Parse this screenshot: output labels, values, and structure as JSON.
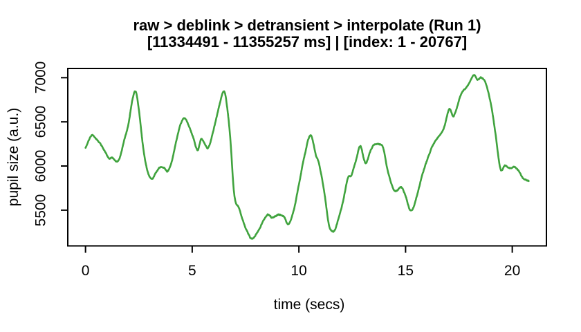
{
  "title": {
    "line1": "raw > deblink > detransient > interpolate (Run 1)",
    "line2": "[11334491 - 11355257 ms] | [index: 1 - 20767]"
  },
  "axes": {
    "x_label": "time (secs)",
    "y_label": "pupil size (a.u.)"
  },
  "colors": {
    "line": "#40a33e",
    "foreground": "#000000",
    "background": "#ffffff"
  },
  "chart_data": {
    "type": "line",
    "title": "raw > deblink > detransient > interpolate (Run 1)",
    "subtitle": "[11334491 - 11355257 ms] | [index: 1 - 20767]",
    "xlabel": "time (secs)",
    "ylabel": "pupil size (a.u.)",
    "x_ticks": [
      0,
      5,
      10,
      15,
      20
    ],
    "y_ticks": [
      5500,
      6000,
      6500,
      7000
    ],
    "xlim": [
      0,
      20.77
    ],
    "ylim": [
      5170,
      7030
    ],
    "axis_expansion": 0.04,
    "grid": "off",
    "legend": "none",
    "line_color": "#40a33e",
    "noise_amplitude": 7,
    "points": [
      [
        0.0,
        6205
      ],
      [
        0.15,
        6290
      ],
      [
        0.3,
        6350
      ],
      [
        0.5,
        6305
      ],
      [
        0.7,
        6250
      ],
      [
        0.9,
        6170
      ],
      [
        1.1,
        6085
      ],
      [
        1.25,
        6095
      ],
      [
        1.45,
        6050
      ],
      [
        1.6,
        6090
      ],
      [
        1.8,
        6280
      ],
      [
        2.0,
        6460
      ],
      [
        2.2,
        6750
      ],
      [
        2.35,
        6845
      ],
      [
        2.5,
        6640
      ],
      [
        2.7,
        6215
      ],
      [
        2.9,
        5945
      ],
      [
        3.1,
        5855
      ],
      [
        3.3,
        5925
      ],
      [
        3.5,
        5985
      ],
      [
        3.7,
        5975
      ],
      [
        3.85,
        5940
      ],
      [
        4.05,
        6060
      ],
      [
        4.25,
        6280
      ],
      [
        4.45,
        6470
      ],
      [
        4.65,
        6540
      ],
      [
        4.85,
        6450
      ],
      [
        5.05,
        6320
      ],
      [
        5.25,
        6180
      ],
      [
        5.42,
        6300
      ],
      [
        5.6,
        6245
      ],
      [
        5.75,
        6205
      ],
      [
        5.95,
        6360
      ],
      [
        6.15,
        6560
      ],
      [
        6.35,
        6760
      ],
      [
        6.5,
        6845
      ],
      [
        6.62,
        6700
      ],
      [
        6.78,
        6330
      ],
      [
        6.97,
        5680
      ],
      [
        7.2,
        5520
      ],
      [
        7.45,
        5330
      ],
      [
        7.62,
        5235
      ],
      [
        7.8,
        5175
      ],
      [
        8.1,
        5270
      ],
      [
        8.35,
        5385
      ],
      [
        8.55,
        5450
      ],
      [
        8.75,
        5415
      ],
      [
        9.05,
        5450
      ],
      [
        9.3,
        5425
      ],
      [
        9.5,
        5340
      ],
      [
        9.75,
        5490
      ],
      [
        10.0,
        5790
      ],
      [
        10.25,
        6100
      ],
      [
        10.55,
        6350
      ],
      [
        10.8,
        6120
      ],
      [
        10.95,
        6020
      ],
      [
        11.2,
        5690
      ],
      [
        11.4,
        5340
      ],
      [
        11.55,
        5262
      ],
      [
        11.7,
        5285
      ],
      [
        11.9,
        5445
      ],
      [
        12.05,
        5580
      ],
      [
        12.3,
        5865
      ],
      [
        12.45,
        5890
      ],
      [
        12.67,
        6060
      ],
      [
        12.88,
        6225
      ],
      [
        13.05,
        6075
      ],
      [
        13.15,
        6030
      ],
      [
        13.36,
        6175
      ],
      [
        13.53,
        6240
      ],
      [
        13.75,
        6245
      ],
      [
        13.95,
        6205
      ],
      [
        14.17,
        5940
      ],
      [
        14.44,
        5733
      ],
      [
        14.6,
        5720
      ],
      [
        14.8,
        5760
      ],
      [
        15.0,
        5660
      ],
      [
        15.2,
        5505
      ],
      [
        15.35,
        5520
      ],
      [
        15.55,
        5680
      ],
      [
        15.75,
        5870
      ],
      [
        16.0,
        6060
      ],
      [
        16.3,
        6245
      ],
      [
        16.6,
        6350
      ],
      [
        16.8,
        6430
      ],
      [
        17.05,
        6645
      ],
      [
        17.25,
        6565
      ],
      [
        17.6,
        6810
      ],
      [
        17.85,
        6890
      ],
      [
        18.0,
        6945
      ],
      [
        18.2,
        7030
      ],
      [
        18.37,
        6980
      ],
      [
        18.55,
        7000
      ],
      [
        18.75,
        6940
      ],
      [
        19.0,
        6700
      ],
      [
        19.2,
        6390
      ],
      [
        19.45,
        5965
      ],
      [
        19.65,
        6005
      ],
      [
        19.9,
        5975
      ],
      [
        20.1,
        5990
      ],
      [
        20.3,
        5945
      ],
      [
        20.5,
        5865
      ],
      [
        20.77,
        5830
      ]
    ]
  }
}
